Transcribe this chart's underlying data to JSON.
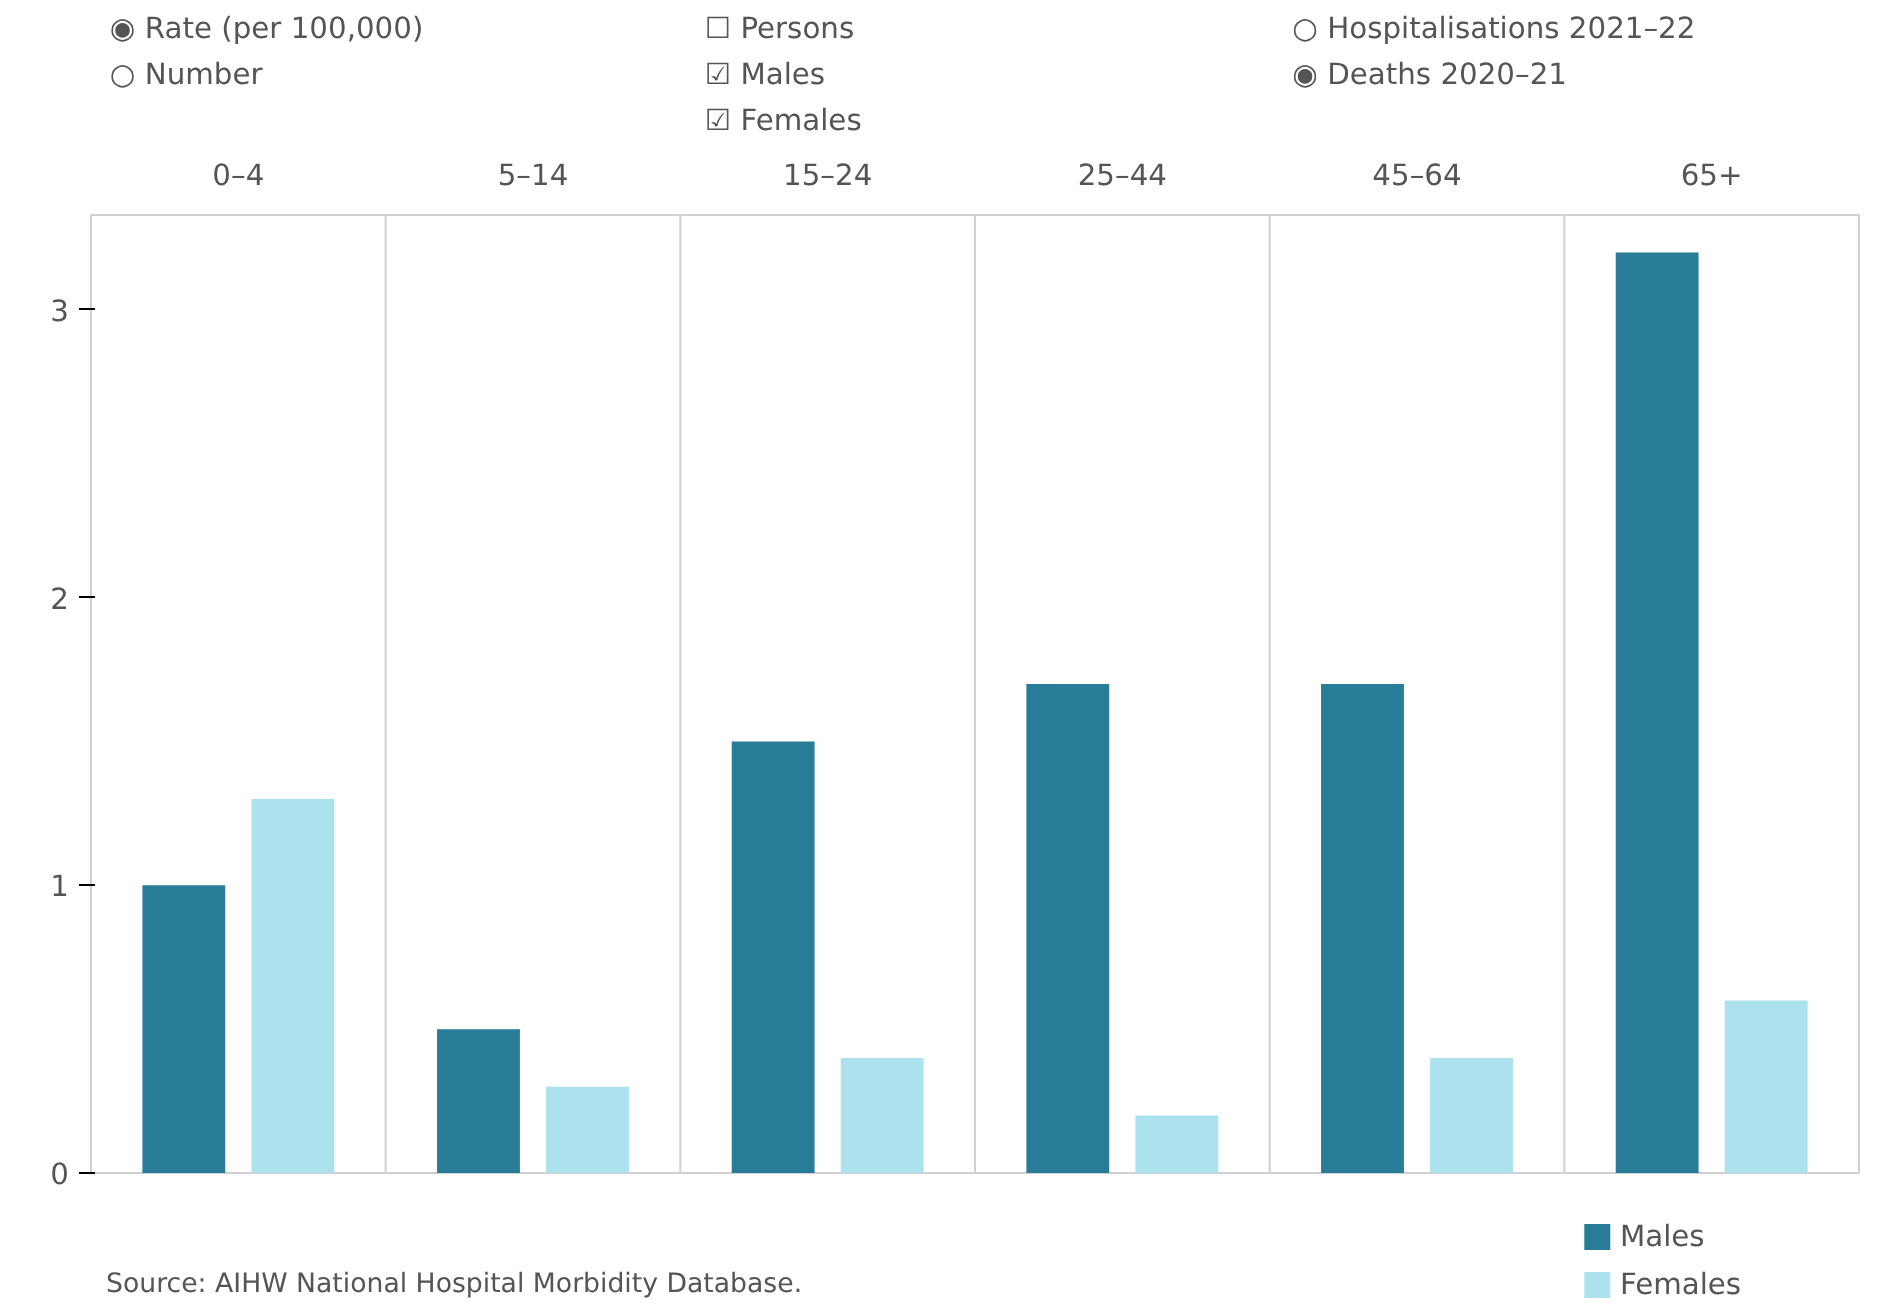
{
  "chart_data": {
    "type": "bar",
    "categories": [
      "0–4",
      "5–14",
      "15–24",
      "25–44",
      "45–64",
      "65+"
    ],
    "series": [
      {
        "name": "Males",
        "color": "#287c97",
        "values": [
          1.0,
          0.5,
          1.5,
          1.7,
          1.7,
          3.2
        ]
      },
      {
        "name": "Females",
        "color": "#abe2ee",
        "values": [
          1.3,
          0.3,
          0.4,
          0.2,
          0.4,
          0.6
        ]
      }
    ],
    "ylim": [
      0,
      3.33
    ],
    "yticks": [
      0,
      1,
      2,
      3
    ],
    "grid": false,
    "legend": "bottom right",
    "annotations": [
      "◉ Rate (per 100,000)",
      "○ Number",
      "☐ Persons",
      "☑ Males",
      "☑ Females",
      "○ Hospitalisations 2021–22",
      "◉ Deaths 2020–21",
      "Source: AIHW National Hospital Morbidity Database."
    ]
  }
}
